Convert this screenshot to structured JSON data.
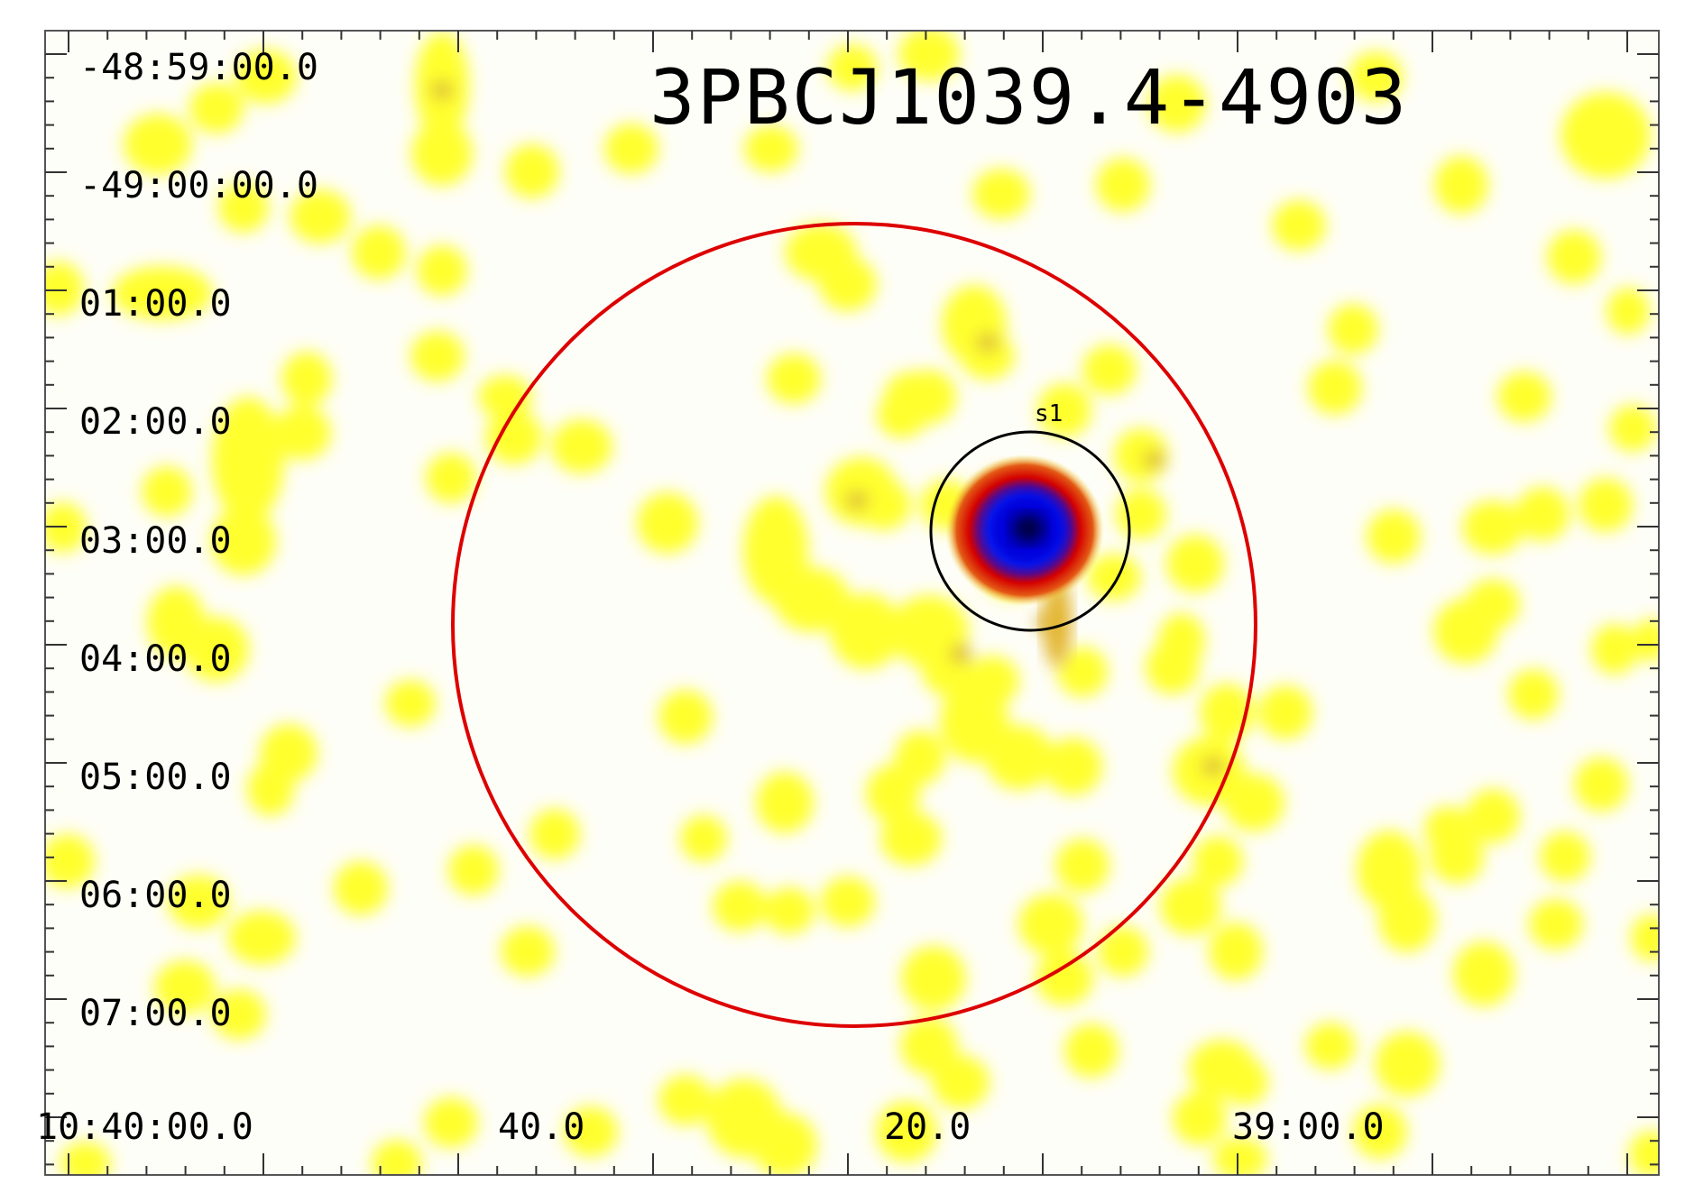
{
  "title": "3PBCJ1039.4-4903",
  "source_label": "s1",
  "y_ticks": [
    "-48:59:00.0",
    "-49:00:00.0",
    "01:00.0",
    "02:00.0",
    "03:00.0",
    "04:00.0",
    "05:00.0",
    "06:00.0",
    "07:00.0"
  ],
  "x_ticks": [
    "10:40:00.0",
    "40.0",
    "20.0",
    "39:00.0"
  ],
  "colors": {
    "background": "#fefef8",
    "low_emission": "#ffff33",
    "mid_emission": "#cc0000",
    "high_emission": "#0000ee",
    "peak": "#000033",
    "extraction_circle": "#dd0000",
    "source_circle": "#000000",
    "frame": "#555555"
  }
}
